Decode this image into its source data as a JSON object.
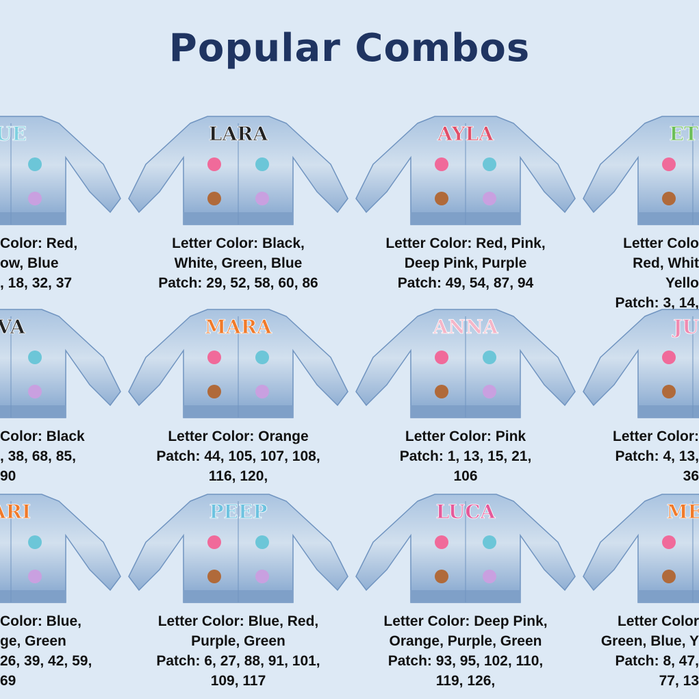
{
  "title": "Popular Combos",
  "colors": {
    "background": "#dde9f5",
    "title": "#1f3461",
    "denim": "#8fb0d6",
    "denim_light": "#c4d7ea"
  },
  "combos": [
    {
      "name": "UE",
      "letter_color": "Color: Red,",
      "line2": "ow, Blue",
      "patch": ", 18, 32, 37",
      "patch2": "",
      "letter_fill": "#7fd0e0"
    },
    {
      "name": "LARA",
      "letter_color": "Letter Color: Black,",
      "line2": "White, Green, Blue",
      "patch": "Patch: 29, 52, 58, 60, 86",
      "patch2": "",
      "letter_fill": "#222222"
    },
    {
      "name": "AYLA",
      "letter_color": "Letter Color: Red, Pink,",
      "line2": "Deep Pink, Purple",
      "patch": "Patch: 49, 54, 87, 94",
      "patch2": "",
      "letter_fill": "#e0506a"
    },
    {
      "name": "ETH",
      "letter_color": "Letter Colo",
      "line2": "Red, Whit",
      "line3": "Yello",
      "patch": "Patch: 3, 14,",
      "patch2": "",
      "letter_fill": "#6cbf5a"
    },
    {
      "name": "VA",
      "letter_color": "Color: Black",
      "line2": "",
      "patch": ", 38, 68, 85,",
      "patch2": "90",
      "letter_fill": "#222222"
    },
    {
      "name": "MARA",
      "letter_color": "Letter Color: Orange",
      "line2": "",
      "patch": "Patch: 44, 105, 107, 108,",
      "patch2": "116, 120,",
      "letter_fill": "#f07a2a"
    },
    {
      "name": "ANNA",
      "letter_color": "Letter Color: Pink",
      "line2": "",
      "patch": "Patch: 1, 13, 15, 21,",
      "patch2": "106",
      "letter_fill": "#f5b6c8"
    },
    {
      "name": "JUL",
      "letter_color": "Letter Color:",
      "line2": "",
      "patch": "Patch: 4, 13,",
      "patch2": "36",
      "letter_fill": "#f08ab0"
    },
    {
      "name": "ARI",
      "letter_color": "Color: Blue,",
      "line2": "ge, Green",
      "patch": "26, 39, 42, 59,",
      "patch2": "69",
      "letter_fill": "#f07a2a"
    },
    {
      "name": "PEEP",
      "letter_color": "Letter Color: Blue, Red,",
      "line2": "Purple, Green",
      "patch": "Patch: 6, 27, 88, 91, 101,",
      "patch2": "109, 117",
      "letter_fill": "#6ec3e0"
    },
    {
      "name": "LUCA",
      "letter_color": "Letter Color: Deep Pink,",
      "line2": "Orange, Purple, Green",
      "patch": "Patch: 93, 95, 102, 110,",
      "patch2": "119, 126,",
      "letter_fill": "#e55a9a"
    },
    {
      "name": "MED",
      "letter_color": "Letter Color",
      "line2": "Green, Blue, Y",
      "patch": "Patch: 8, 47,",
      "patch2": "77, 13",
      "letter_fill": "#f07a2a"
    }
  ]
}
